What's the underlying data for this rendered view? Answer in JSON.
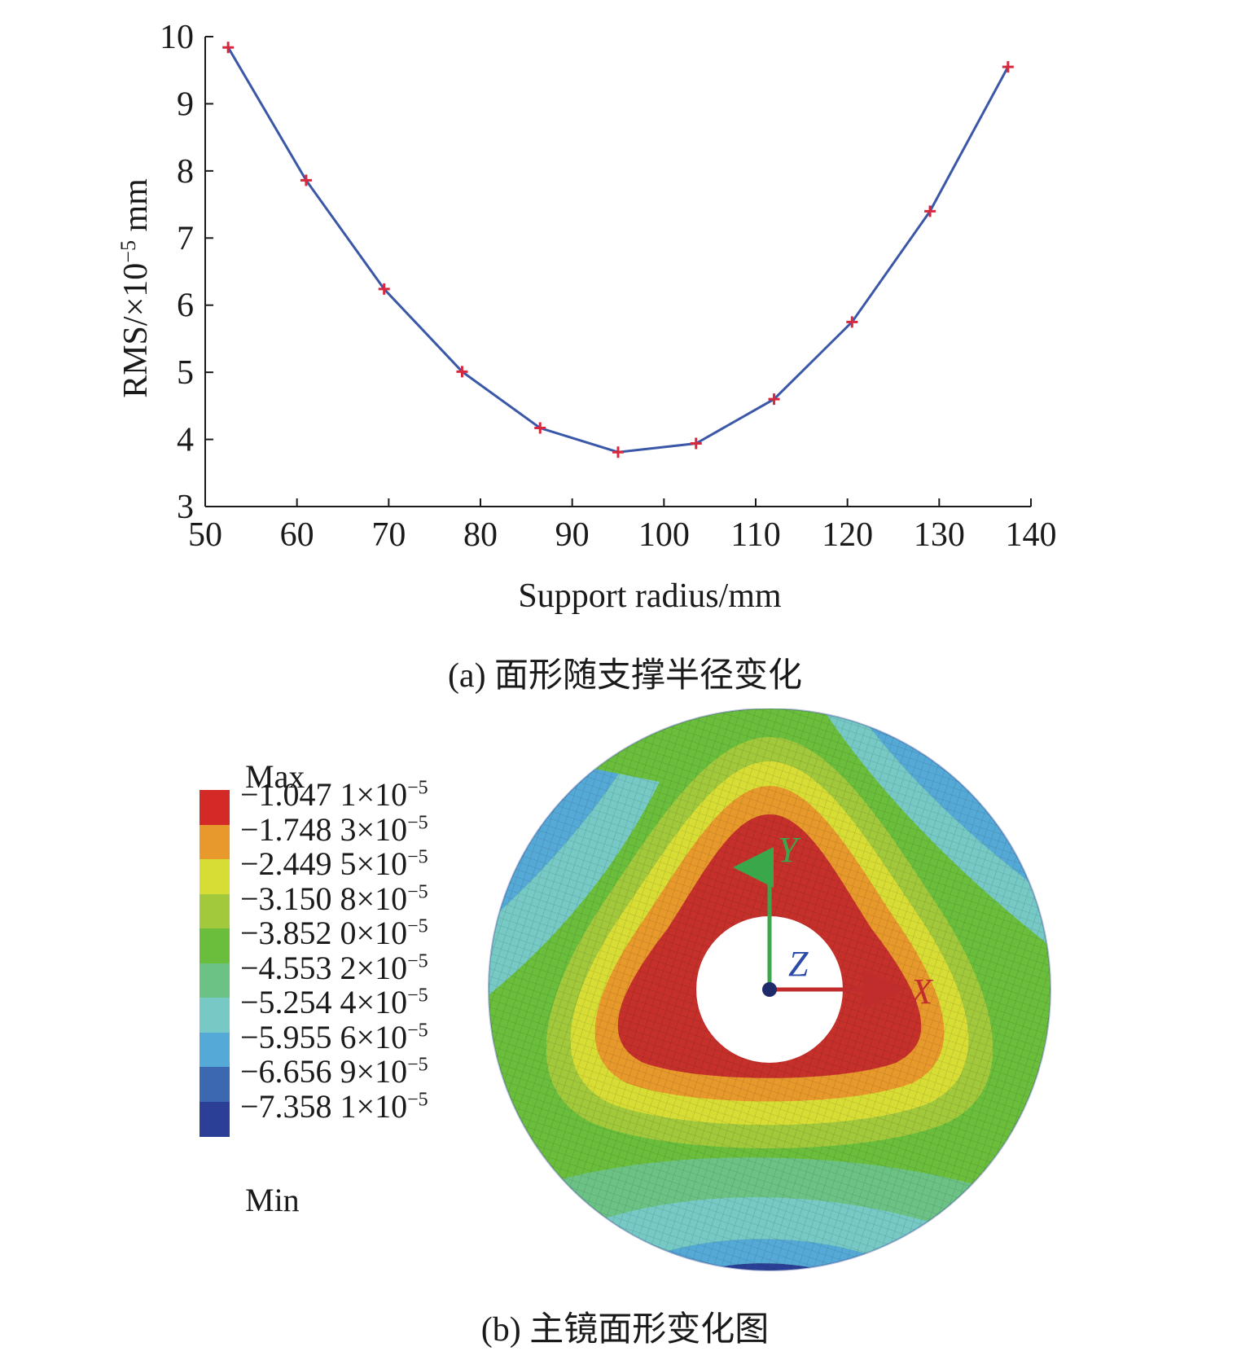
{
  "chart_data": {
    "type": "line",
    "xlabel": "Support radius/mm",
    "ylabel": "RMS/×10⁻⁵ mm",
    "xlim": [
      50,
      140
    ],
    "ylim": [
      3,
      10
    ],
    "xticks": [
      "50",
      "60",
      "70",
      "80",
      "90",
      "100",
      "110",
      "120",
      "130",
      "140"
    ],
    "yticks": [
      "3",
      "4",
      "5",
      "6",
      "7",
      "8",
      "9",
      "10"
    ],
    "x": [
      52.5,
      61,
      69.5,
      78,
      86.5,
      95,
      103.5,
      112,
      120.5,
      129,
      137.5
    ],
    "y": [
      9.84,
      7.86,
      6.24,
      5.01,
      4.17,
      3.81,
      3.94,
      4.6,
      5.75,
      7.4,
      9.55
    ],
    "grid": false,
    "line_color": "#3a57a8",
    "marker_color": "#d8283e"
  },
  "caption_a": "(a) 面形随支撑半径变化",
  "caption_b": "(b) 主镜面形变化图",
  "legend": {
    "max_label": "Max",
    "min_label": "Min",
    "levels": [
      {
        "value": "−1.047 1×10",
        "exp": "−5",
        "color": "#d42a27"
      },
      {
        "value": "−1.748 3×10",
        "exp": "−5",
        "color": "#e8992b"
      },
      {
        "value": "−2.449 5×10",
        "exp": "−5",
        "color": "#d8dd35"
      },
      {
        "value": "−3.150 8×10",
        "exp": "−5",
        "color": "#a2c83c"
      },
      {
        "value": "−3.852 0×10",
        "exp": "−5",
        "color": "#6abe3c"
      },
      {
        "value": "−4.553 2×10",
        "exp": "−5",
        "color": "#6cc285"
      },
      {
        "value": "−5.254 4×10",
        "exp": "−5",
        "color": "#76c9c4"
      },
      {
        "value": "−5.955 6×10",
        "exp": "−5",
        "color": "#55a9d6"
      },
      {
        "value": "−6.656 9×10",
        "exp": "−5",
        "color": "#3b68b1"
      },
      {
        "value": "−7.358 1×10",
        "exp": "−5",
        "color": "#2b3f96"
      }
    ]
  },
  "axes_triad": {
    "x_label": "X",
    "y_label": "Y",
    "z_label": "Z"
  }
}
